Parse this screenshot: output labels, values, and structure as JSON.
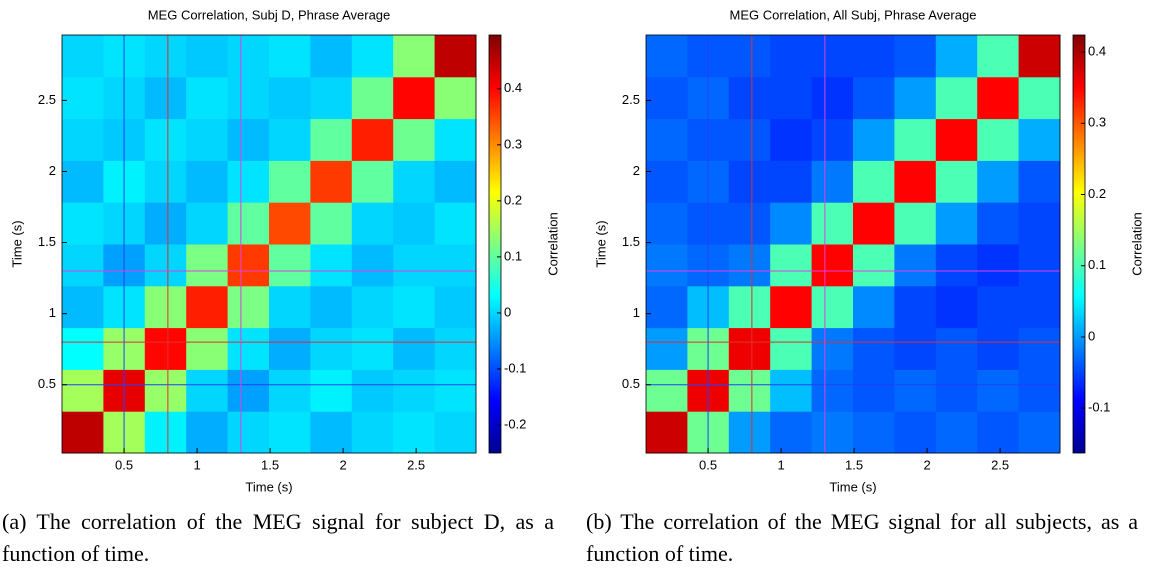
{
  "chart_data": [
    {
      "type": "heatmap",
      "title": "MEG Correlation, Subj D, Phrase Average",
      "x_label": "Time (s)",
      "y_label": "Time (s)",
      "colorbar_label": "Correlation",
      "xlim": [
        0.075,
        2.91
      ],
      "ylim": [
        0.02,
        2.96
      ],
      "xticks": [
        0.5,
        1,
        1.5,
        2,
        2.5
      ],
      "yticks": [
        0.5,
        1,
        1.5,
        2,
        2.5
      ],
      "clim": [
        -0.25,
        0.496
      ],
      "cticks": [
        -0.2,
        -0.1,
        0,
        0.1,
        0.2,
        0.3,
        0.4
      ],
      "colormap": "jet",
      "reference_lines": [
        {
          "value": 0.5,
          "color": "#2040ff"
        },
        {
          "value": 0.8,
          "color": "#e03030"
        },
        {
          "value": 1.3,
          "color": "#e040e0"
        }
      ],
      "z": [
        [
          0.45,
          0.15,
          0.02,
          -0.03,
          0,
          0.01,
          -0.02,
          0,
          0.01,
          0
        ],
        [
          0.15,
          0.42,
          0.14,
          0,
          -0.04,
          0,
          0.02,
          -0.01,
          0,
          0.01
        ],
        [
          0.03,
          0.14,
          0.4,
          0.13,
          0.01,
          -0.03,
          0,
          0.01,
          -0.02,
          0
        ],
        [
          -0.02,
          0.01,
          0.13,
          0.38,
          0.12,
          0,
          -0.02,
          0,
          0.01,
          -0.01
        ],
        [
          0,
          -0.04,
          0,
          0.12,
          0.36,
          0.1,
          0.01,
          -0.02,
          0,
          0
        ],
        [
          0.01,
          0,
          -0.03,
          0,
          0.1,
          0.35,
          0.1,
          0,
          -0.01,
          0.01
        ],
        [
          -0.02,
          0.02,
          0,
          -0.02,
          0.01,
          0.1,
          0.36,
          0.1,
          0,
          -0.02
        ],
        [
          0,
          -0.01,
          0.01,
          0,
          -0.02,
          0,
          0.1,
          0.38,
          0.11,
          0.01
        ],
        [
          0.01,
          0,
          -0.02,
          0.01,
          0,
          -0.01,
          0,
          0.11,
          0.4,
          0.13
        ],
        [
          0,
          0.01,
          0,
          -0.01,
          0,
          0.01,
          -0.02,
          0.01,
          0.13,
          0.45
        ]
      ]
    },
    {
      "type": "heatmap",
      "title": "MEG Correlation, All Subj, Phrase Average",
      "x_label": "Time (s)",
      "y_label": "Time (s)",
      "colorbar_label": "Correlation",
      "xlim": [
        0.075,
        2.91
      ],
      "ylim": [
        0.02,
        2.96
      ],
      "xticks": [
        0.5,
        1,
        1.5,
        2,
        2.5
      ],
      "yticks": [
        0.5,
        1,
        1.5,
        2,
        2.5
      ],
      "clim": [
        -0.163,
        0.424
      ],
      "cticks": [
        -0.1,
        0,
        0.1,
        0.2,
        0.3,
        0.4
      ],
      "colormap": "jet",
      "reference_lines": [
        {
          "value": 0.5,
          "color": "#2040ff"
        },
        {
          "value": 0.8,
          "color": "#e03030"
        },
        {
          "value": 1.3,
          "color": "#e040e0"
        }
      ],
      "z": [
        [
          0.38,
          0.12,
          0,
          -0.03,
          -0.02,
          -0.03,
          -0.04,
          -0.03,
          -0.04,
          -0.03
        ],
        [
          0.12,
          0.36,
          0.12,
          0.02,
          -0.03,
          -0.04,
          -0.03,
          -0.04,
          -0.03,
          -0.04
        ],
        [
          0,
          0.12,
          0.36,
          0.1,
          -0.02,
          -0.04,
          -0.05,
          -0.04,
          -0.05,
          -0.04
        ],
        [
          -0.03,
          0.02,
          0.1,
          0.35,
          0.1,
          -0.01,
          -0.05,
          -0.06,
          -0.05,
          -0.05
        ],
        [
          -0.02,
          -0.03,
          -0.02,
          0.1,
          0.35,
          0.1,
          -0.02,
          -0.05,
          -0.06,
          -0.05
        ],
        [
          -0.03,
          -0.04,
          -0.04,
          -0.01,
          0.1,
          0.35,
          0.1,
          0,
          -0.04,
          -0.05
        ],
        [
          -0.04,
          -0.03,
          -0.05,
          -0.05,
          -0.02,
          0.1,
          0.35,
          0.1,
          0,
          -0.04
        ],
        [
          -0.03,
          -0.04,
          -0.04,
          -0.06,
          -0.05,
          0,
          0.1,
          0.35,
          0.1,
          0.01
        ],
        [
          -0.04,
          -0.03,
          -0.05,
          -0.05,
          -0.06,
          -0.04,
          0,
          0.1,
          0.35,
          0.1
        ],
        [
          -0.03,
          -0.04,
          -0.04,
          -0.05,
          -0.05,
          -0.05,
          -0.04,
          0.01,
          0.1,
          0.38
        ]
      ]
    }
  ],
  "captions": [
    "(a) The correlation of the MEG signal for subject D, as a function of time.",
    "(b) The correlation of the MEG signal for all subjects, as a function of time."
  ]
}
